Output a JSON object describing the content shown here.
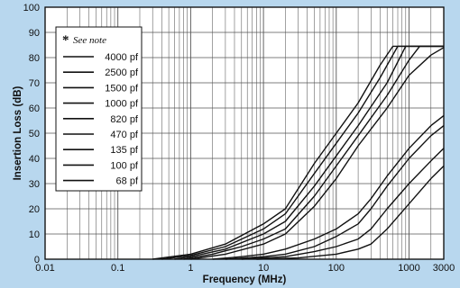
{
  "chart_data": {
    "type": "line",
    "title": "",
    "xlabel": "Frequency (MHz)",
    "ylabel": "Insertion Loss (dB)",
    "xscale": "log",
    "xlim": [
      0.01,
      3000
    ],
    "ylim": [
      0,
      100
    ],
    "x_ticks": [
      0.01,
      0.1,
      1,
      10,
      100,
      1000,
      3000
    ],
    "x_tick_labels": [
      "0.01",
      "0.1",
      "1",
      "10",
      "100",
      "1000",
      "3000"
    ],
    "y_ticks": [
      0,
      10,
      20,
      30,
      40,
      50,
      60,
      70,
      80,
      90,
      100
    ],
    "y_tick_labels": [
      "0",
      "10",
      "20",
      "30",
      "40",
      "50",
      "60",
      "70",
      "80",
      "90",
      "100"
    ],
    "grid": true,
    "legend_position": "top-left",
    "legend_title": "See note",
    "legend_title_marker": "*",
    "series": [
      {
        "name": "4000  pf",
        "points": [
          [
            0.3,
            0
          ],
          [
            1,
            2
          ],
          [
            3,
            6
          ],
          [
            10,
            14
          ],
          [
            20,
            20
          ],
          [
            50,
            38
          ],
          [
            100,
            50
          ],
          [
            200,
            62
          ],
          [
            400,
            77
          ],
          [
            600,
            84.5
          ],
          [
            3000,
            84.5
          ]
        ]
      },
      {
        "name": "2500  pf",
        "points": [
          [
            0.4,
            0
          ],
          [
            1,
            1.5
          ],
          [
            3,
            5
          ],
          [
            10,
            12
          ],
          [
            20,
            18
          ],
          [
            50,
            34
          ],
          [
            100,
            46
          ],
          [
            200,
            58
          ],
          [
            400,
            72
          ],
          [
            700,
            84.5
          ],
          [
            3000,
            84.5
          ]
        ]
      },
      {
        "name": "1500  pf",
        "points": [
          [
            0.6,
            0
          ],
          [
            1,
            1
          ],
          [
            3,
            4
          ],
          [
            10,
            10
          ],
          [
            20,
            15
          ],
          [
            50,
            29
          ],
          [
            100,
            41
          ],
          [
            200,
            53
          ],
          [
            500,
            70
          ],
          [
            900,
            84.5
          ],
          [
            3000,
            84.5
          ]
        ]
      },
      {
        "name": "1000  pf",
        "points": [
          [
            0.8,
            0
          ],
          [
            2,
            2
          ],
          [
            5,
            5
          ],
          [
            10,
            8
          ],
          [
            20,
            12
          ],
          [
            50,
            25
          ],
          [
            100,
            37
          ],
          [
            200,
            49
          ],
          [
            500,
            65
          ],
          [
            1000,
            79
          ],
          [
            1400,
            84.5
          ],
          [
            3000,
            84.5
          ]
        ]
      },
      {
        "name": "820  pf",
        "points": [
          [
            1,
            0
          ],
          [
            3,
            2
          ],
          [
            10,
            6
          ],
          [
            20,
            10
          ],
          [
            50,
            21
          ],
          [
            100,
            32
          ],
          [
            200,
            45
          ],
          [
            500,
            60
          ],
          [
            1000,
            73
          ],
          [
            2000,
            81
          ],
          [
            3000,
            84
          ]
        ]
      },
      {
        "name": "470  pf",
        "points": [
          [
            2,
            0
          ],
          [
            5,
            1
          ],
          [
            10,
            2
          ],
          [
            20,
            4
          ],
          [
            50,
            8
          ],
          [
            100,
            12
          ],
          [
            200,
            18
          ],
          [
            300,
            24
          ],
          [
            500,
            33
          ],
          [
            1000,
            44
          ],
          [
            2000,
            53
          ],
          [
            3000,
            57
          ]
        ]
      },
      {
        "name": "135  pf",
        "points": [
          [
            3,
            0
          ],
          [
            10,
            1
          ],
          [
            20,
            2
          ],
          [
            50,
            5
          ],
          [
            100,
            9
          ],
          [
            200,
            14
          ],
          [
            300,
            20
          ],
          [
            500,
            29
          ],
          [
            1000,
            40
          ],
          [
            2000,
            49
          ],
          [
            3000,
            53
          ]
        ]
      },
      {
        "name": "100  pf",
        "points": [
          [
            5,
            0
          ],
          [
            20,
            1
          ],
          [
            50,
            3
          ],
          [
            100,
            5
          ],
          [
            200,
            8
          ],
          [
            300,
            12
          ],
          [
            500,
            20
          ],
          [
            1000,
            30
          ],
          [
            2000,
            39
          ],
          [
            3000,
            44
          ]
        ]
      },
      {
        "name": "68  pf",
        "points": [
          [
            8,
            0
          ],
          [
            30,
            0.5
          ],
          [
            100,
            2
          ],
          [
            200,
            4
          ],
          [
            300,
            6
          ],
          [
            500,
            12
          ],
          [
            1000,
            22
          ],
          [
            2000,
            32
          ],
          [
            3000,
            37
          ]
        ]
      }
    ]
  },
  "header": {
    "visible_title_fragment": "... ...                    ..."
  }
}
